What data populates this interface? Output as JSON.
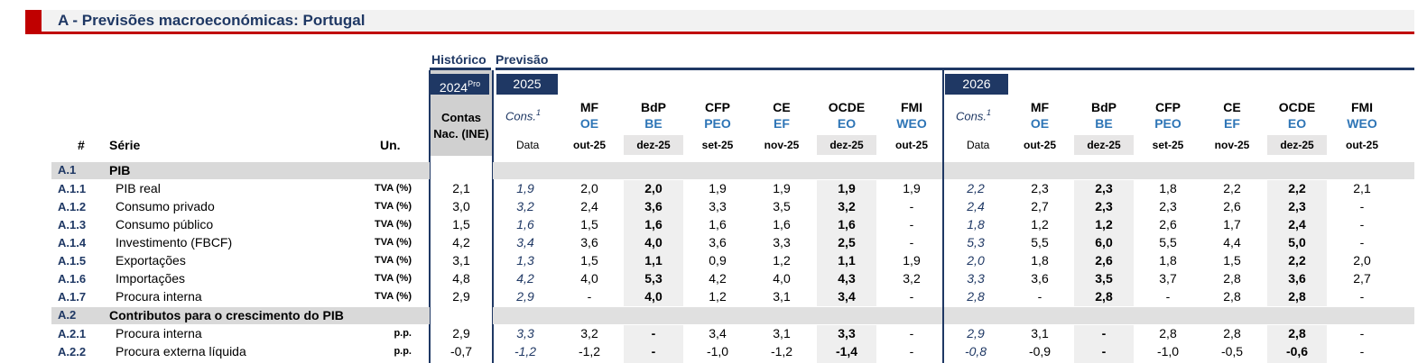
{
  "title": "A - Previsões macroeconómicas: Portugal",
  "groups": {
    "historico": "Histórico",
    "previsao": "Previsão"
  },
  "years": {
    "y2024": "2024",
    "y2024_sup": "Pro",
    "y2025": "2025",
    "y2026": "2026"
  },
  "hist_header": "Contas Nac. (INE)",
  "columns_header": {
    "num": "#",
    "serie": "Série",
    "unit": "Un."
  },
  "cons_label": "Cons.",
  "cons_sup": "1",
  "data_label": "Data",
  "institutions": [
    {
      "name": "MF",
      "sub": "OE"
    },
    {
      "name": "BdP",
      "sub": "BE"
    },
    {
      "name": "CFP",
      "sub": "PEO"
    },
    {
      "name": "CE",
      "sub": "EF"
    },
    {
      "name": "OCDE",
      "sub": "EO"
    },
    {
      "name": "FMI",
      "sub": "WEO"
    }
  ],
  "dates": [
    "out-25",
    "dez-25",
    "set-25",
    "nov-25",
    "dez-25",
    "out-25"
  ],
  "sections": [
    {
      "id": "A.1",
      "label": "PIB"
    },
    {
      "id": "A.2",
      "label": "Contributos para o crescimento do PIB"
    }
  ],
  "rows": [
    {
      "id": "A.1.1",
      "label": "PIB real",
      "unit": "TVA (%)",
      "hist": "2,1",
      "c25": "1,9",
      "v25": [
        "2,0",
        "2,0",
        "1,9",
        "1,9",
        "1,9",
        "1,9"
      ],
      "c26": "2,2",
      "v26": [
        "2,3",
        "2,3",
        "1,8",
        "2,2",
        "2,2",
        "2,1"
      ]
    },
    {
      "id": "A.1.2",
      "label": "Consumo privado",
      "unit": "TVA (%)",
      "hist": "3,0",
      "c25": "3,2",
      "v25": [
        "2,4",
        "3,6",
        "3,3",
        "3,5",
        "3,2",
        "-"
      ],
      "c26": "2,4",
      "v26": [
        "2,7",
        "2,3",
        "2,3",
        "2,6",
        "2,3",
        "-"
      ]
    },
    {
      "id": "A.1.3",
      "label": "Consumo público",
      "unit": "TVA (%)",
      "hist": "1,5",
      "c25": "1,6",
      "v25": [
        "1,5",
        "1,6",
        "1,6",
        "1,6",
        "1,6",
        "-"
      ],
      "c26": "1,8",
      "v26": [
        "1,2",
        "1,2",
        "2,6",
        "1,7",
        "2,4",
        "-"
      ]
    },
    {
      "id": "A.1.4",
      "label": "Investimento (FBCF)",
      "unit": "TVA (%)",
      "hist": "4,2",
      "c25": "3,4",
      "v25": [
        "3,6",
        "4,0",
        "3,6",
        "3,3",
        "2,5",
        "-"
      ],
      "c26": "5,3",
      "v26": [
        "5,5",
        "6,0",
        "5,5",
        "4,4",
        "5,0",
        "-"
      ]
    },
    {
      "id": "A.1.5",
      "label": "Exportações",
      "unit": "TVA (%)",
      "hist": "3,1",
      "c25": "1,3",
      "v25": [
        "1,5",
        "1,1",
        "0,9",
        "1,2",
        "1,1",
        "1,9"
      ],
      "c26": "2,0",
      "v26": [
        "1,8",
        "2,6",
        "1,8",
        "1,5",
        "2,2",
        "2,0"
      ]
    },
    {
      "id": "A.1.6",
      "label": "Importações",
      "unit": "TVA (%)",
      "hist": "4,8",
      "c25": "4,2",
      "v25": [
        "4,0",
        "5,3",
        "4,2",
        "4,0",
        "4,3",
        "3,2"
      ],
      "c26": "3,3",
      "v26": [
        "3,6",
        "3,5",
        "3,7",
        "2,8",
        "3,6",
        "2,7"
      ]
    },
    {
      "id": "A.1.7",
      "label": "Procura interna",
      "unit": "TVA (%)",
      "hist": "2,9",
      "c25": "2,9",
      "v25": [
        "-",
        "4,0",
        "1,2",
        "3,1",
        "3,4",
        "-"
      ],
      "c26": "2,8",
      "v26": [
        "-",
        "2,8",
        "-",
        "2,8",
        "2,8",
        "-"
      ]
    },
    {
      "id": "A.2.1",
      "label": "Procura interna",
      "unit": "p.p.",
      "hist": "2,9",
      "c25": "3,3",
      "v25": [
        "3,2",
        "-",
        "3,4",
        "3,1",
        "3,3",
        "-"
      ],
      "c26": "2,9",
      "v26": [
        "3,1",
        "-",
        "2,8",
        "2,8",
        "2,8",
        "-"
      ]
    },
    {
      "id": "A.2.2",
      "label": "Procura externa líquida",
      "unit": "p.p.",
      "hist": "-0,7",
      "c25": "-1,2",
      "v25": [
        "-1,2",
        "-",
        "-1,0",
        "-1,2",
        "-1,4",
        "-"
      ],
      "c26": "-0,8",
      "v26": [
        "-0,9",
        "-",
        "-1,0",
        "-0,5",
        "-0,6",
        "-"
      ]
    }
  ]
}
